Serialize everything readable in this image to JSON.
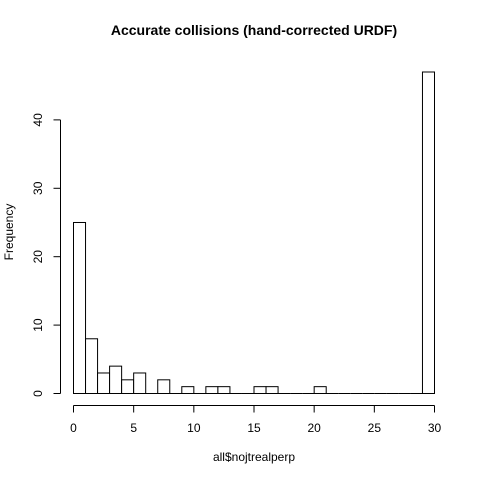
{
  "chart_data": {
    "type": "bar",
    "title": "Accurate collisions (hand-corrected URDF)",
    "xlabel": "all$nojtrealperp",
    "ylabel": "Frequency",
    "xlim": [
      0,
      30
    ],
    "ylim": [
      0,
      47
    ],
    "x_ticks": [
      "0",
      "5",
      "10",
      "15",
      "20",
      "25",
      "30"
    ],
    "y_ticks": [
      "0",
      "10",
      "20",
      "30",
      "40"
    ],
    "bin_width": 1,
    "bins": [
      {
        "start": 0,
        "end": 1,
        "count": 25
      },
      {
        "start": 1,
        "end": 2,
        "count": 8
      },
      {
        "start": 2,
        "end": 3,
        "count": 3
      },
      {
        "start": 3,
        "end": 4,
        "count": 4
      },
      {
        "start": 4,
        "end": 5,
        "count": 2
      },
      {
        "start": 5,
        "end": 6,
        "count": 3
      },
      {
        "start": 6,
        "end": 7,
        "count": 0
      },
      {
        "start": 7,
        "end": 8,
        "count": 2
      },
      {
        "start": 8,
        "end": 9,
        "count": 0
      },
      {
        "start": 9,
        "end": 10,
        "count": 1
      },
      {
        "start": 10,
        "end": 11,
        "count": 0
      },
      {
        "start": 11,
        "end": 12,
        "count": 1
      },
      {
        "start": 12,
        "end": 13,
        "count": 1
      },
      {
        "start": 13,
        "end": 14,
        "count": 0
      },
      {
        "start": 14,
        "end": 15,
        "count": 0
      },
      {
        "start": 15,
        "end": 16,
        "count": 1
      },
      {
        "start": 16,
        "end": 17,
        "count": 1
      },
      {
        "start": 17,
        "end": 18,
        "count": 0
      },
      {
        "start": 18,
        "end": 19,
        "count": 0
      },
      {
        "start": 19,
        "end": 20,
        "count": 0
      },
      {
        "start": 20,
        "end": 21,
        "count": 1
      },
      {
        "start": 21,
        "end": 22,
        "count": 0
      },
      {
        "start": 22,
        "end": 23,
        "count": 0
      },
      {
        "start": 23,
        "end": 24,
        "count": 0
      },
      {
        "start": 24,
        "end": 25,
        "count": 0
      },
      {
        "start": 25,
        "end": 26,
        "count": 0
      },
      {
        "start": 26,
        "end": 27,
        "count": 0
      },
      {
        "start": 27,
        "end": 28,
        "count": 0
      },
      {
        "start": 28,
        "end": 29,
        "count": 0
      },
      {
        "start": 29,
        "end": 30,
        "count": 47
      }
    ],
    "grid": false,
    "legend": "none"
  }
}
